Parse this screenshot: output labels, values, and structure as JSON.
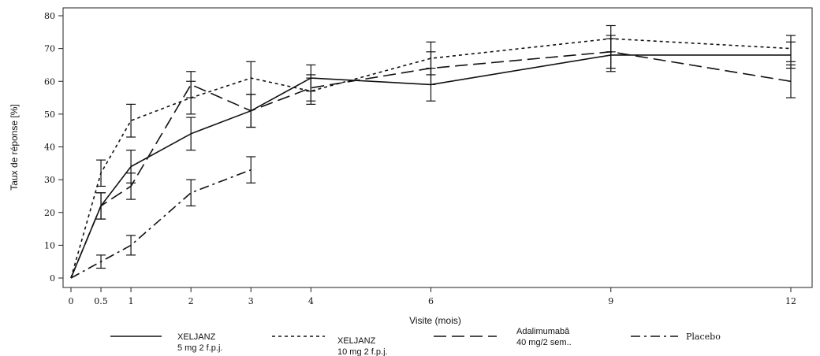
{
  "chart_data": {
    "type": "line",
    "xlabel": "Visite (mois)",
    "ylabel": "Taux de réponse [%]",
    "x_ticks": [
      "0",
      "0.5",
      "1",
      "2",
      "3",
      "4",
      "6",
      "9",
      "12"
    ],
    "y_ticks": [
      "0",
      "10",
      "20",
      "30",
      "40",
      "50",
      "60",
      "70",
      "80"
    ],
    "xlim": [
      0,
      12.4
    ],
    "ylim": [
      0,
      80
    ],
    "series": [
      {
        "name": [
          "XELJANZ",
          "5 mg 2 f.p.j."
        ],
        "dash": "solid",
        "x": [
          0,
          0.5,
          1,
          2,
          3,
          4,
          6,
          9,
          12
        ],
        "y": [
          0,
          22,
          34,
          44,
          51,
          61,
          59,
          68,
          68
        ],
        "err": [
          0,
          4,
          5,
          5,
          5,
          4,
          5,
          5,
          4
        ]
      },
      {
        "name": [
          "XELJANZ",
          "10 mg 2 f.p.j."
        ],
        "dash": "short",
        "x": [
          0,
          0.5,
          1,
          2,
          3,
          4,
          6,
          9,
          12
        ],
        "y": [
          0,
          32,
          48,
          55,
          61,
          57,
          67,
          73,
          70
        ],
        "err": [
          0,
          4,
          5,
          5,
          5,
          4,
          5,
          4,
          4
        ]
      },
      {
        "name": [
          "Adalimumabâ",
          "40 mg/2 sem.."
        ],
        "dash": "long",
        "x": [
          0,
          0.5,
          1,
          2,
          3,
          4,
          6,
          9,
          12
        ],
        "y": [
          0,
          22,
          28,
          59,
          51,
          58,
          64,
          69,
          60
        ],
        "err": [
          0,
          4,
          4,
          4,
          5,
          4,
          5,
          5,
          5
        ]
      },
      {
        "name": [
          "Placebo"
        ],
        "dash": "dashdot",
        "x": [
          0,
          0.5,
          1,
          2,
          3
        ],
        "y": [
          0,
          5,
          10,
          26,
          33
        ],
        "err": [
          0,
          2,
          3,
          4,
          4
        ]
      }
    ],
    "legend_position": "bottom"
  }
}
